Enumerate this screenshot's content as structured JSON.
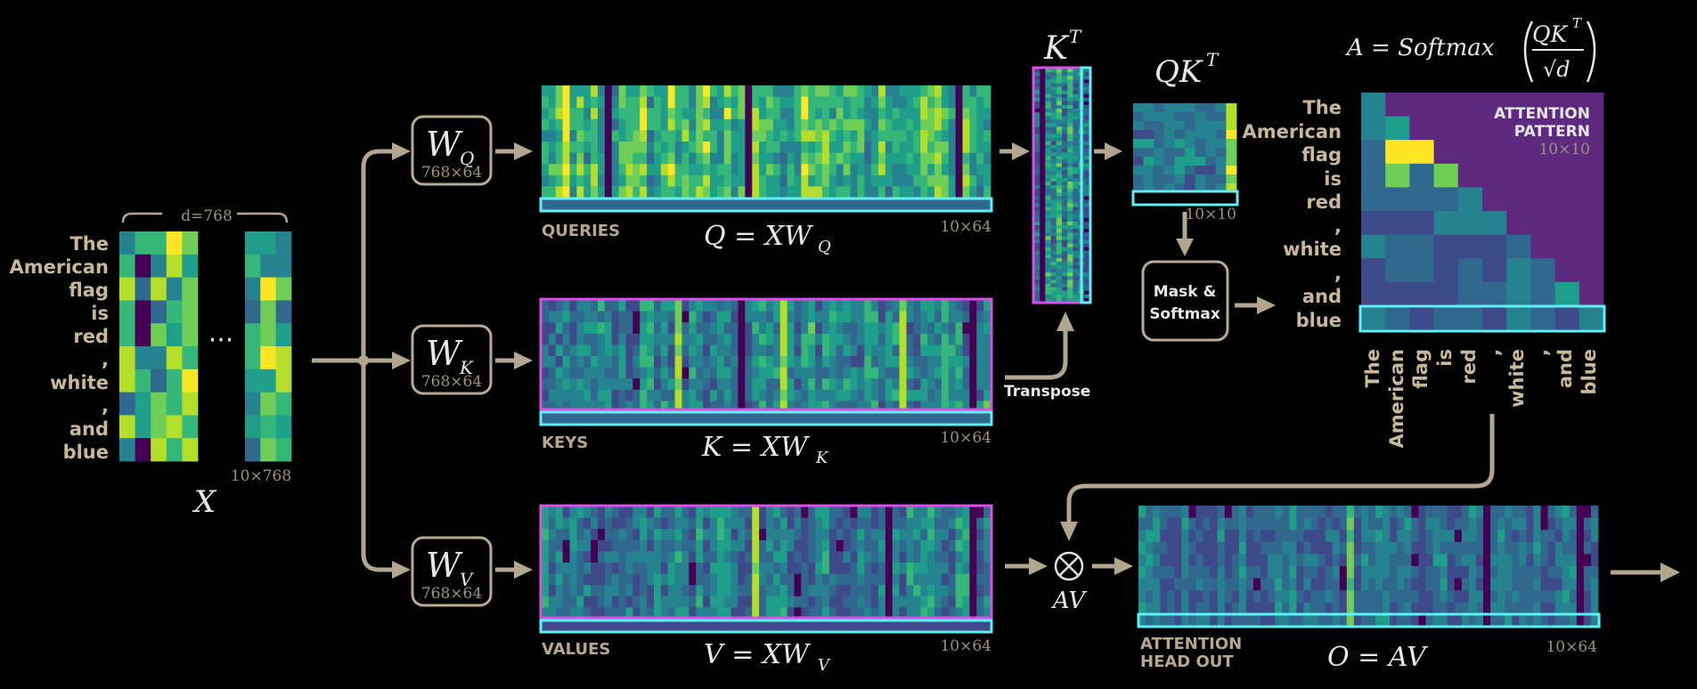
{
  "tokens": [
    "The",
    "American",
    "flag",
    "is",
    "red",
    ",",
    "white",
    ",",
    "and",
    "blue"
  ],
  "input": {
    "d_label": "d=768",
    "dots": "···",
    "shape": "10×768",
    "name": "X"
  },
  "weights": {
    "q": {
      "sym": "W",
      "sub": "Q",
      "shape": "768×64"
    },
    "k": {
      "sym": "W",
      "sub": "K",
      "shape": "768×64"
    },
    "v": {
      "sym": "W",
      "sub": "V",
      "shape": "768×64"
    }
  },
  "queries": {
    "caption": "QUERIES",
    "formula_lhs": "Q = XW",
    "formula_sub": "Q",
    "shape": "10×64"
  },
  "keys": {
    "caption": "KEYS",
    "formula_lhs": "K = XW",
    "formula_sub": "K",
    "shape": "10×64"
  },
  "values": {
    "caption": "VALUES",
    "formula_lhs": "V = XW",
    "formula_sub": "V",
    "shape": "10×64"
  },
  "transpose": {
    "label": "Transpose",
    "kt_base": "K",
    "kt_sup": "T"
  },
  "qkt": {
    "base": "QK",
    "sup": "T",
    "shape": "10×10"
  },
  "mask_softmax": {
    "line1": "Mask &",
    "line2": "Softmax"
  },
  "softmax_formula": {
    "lhs": "A = Softmax",
    "num": "QK",
    "num_sup": "T",
    "den": "√d"
  },
  "attention": {
    "title_line1": "ATTENTION",
    "title_line2": "PATTERN",
    "shape": "10×10"
  },
  "av": {
    "label": "AV",
    "symbol": "⊗"
  },
  "output": {
    "caption_line1": "ATTENTION",
    "caption_line2": "HEAD OUT",
    "formula": "O = AV",
    "shape": "10×64"
  },
  "colors": {
    "cyan_highlight": "#5ef0f4",
    "magenta_highlight": "#d84fe6",
    "arrow": "#b3a68e",
    "mask_purple": "#5e2a80",
    "viridis": [
      "#440154",
      "#3e4a89",
      "#31688e",
      "#26828e",
      "#1f9e89",
      "#35b779",
      "#6ece58",
      "#b5de2b",
      "#fde725"
    ]
  },
  "icons": {
    "multiply": "circle-times-icon"
  }
}
